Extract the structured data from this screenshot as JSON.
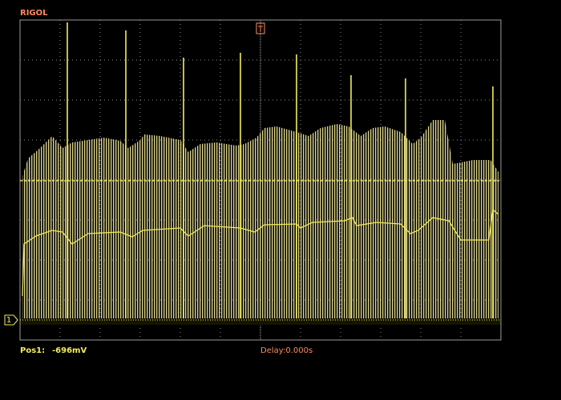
{
  "header": {
    "brand": "RIGOL"
  },
  "status": {
    "position_label": "Pos1:",
    "position_value": "-696mV",
    "delay": "Delay:0.000s"
  },
  "channel_marker": "1"
}
